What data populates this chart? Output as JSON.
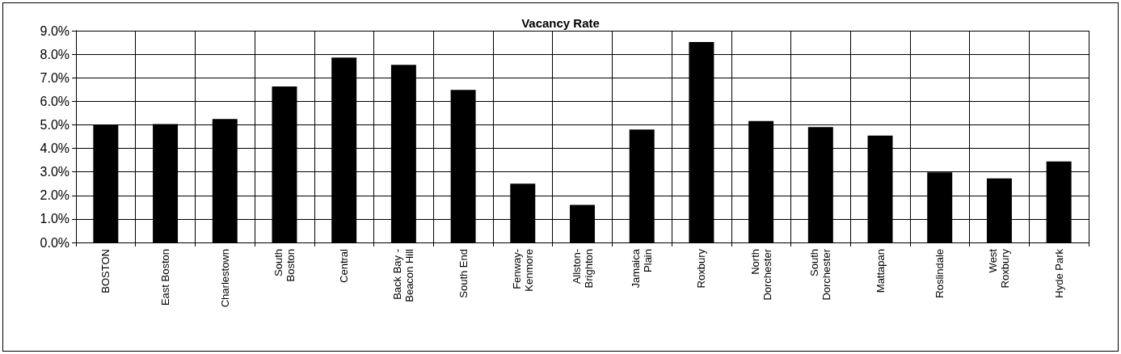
{
  "chart_data": {
    "type": "bar",
    "title": "Vacancy Rate",
    "categories": [
      "BOSTON",
      "East Boston",
      "Charlestown",
      "South\nBoston",
      "Central",
      "Back Bay -\nBeacon Hill",
      "South End",
      "Fenway-\nKenmore",
      "Allston-\nBrighton",
      "Jamaica\nPlain",
      "Roxbury",
      "North\nDorchester",
      "South\nDorchester",
      "Mattapan",
      "Roslindale",
      "West\nRoxbury",
      "Hyde Park"
    ],
    "values": [
      5.0,
      5.03,
      5.25,
      6.63,
      7.86,
      7.55,
      6.48,
      2.5,
      1.6,
      4.8,
      8.52,
      5.16,
      4.9,
      4.54,
      2.98,
      2.72,
      3.44
    ],
    "color": "#000000",
    "ylim": [
      0,
      9
    ],
    "yticks": [
      {
        "value": 0,
        "label": "0.0%"
      },
      {
        "value": 1,
        "label": "1.0%"
      },
      {
        "value": 2,
        "label": "2.0%"
      },
      {
        "value": 3,
        "label": "3.0%"
      },
      {
        "value": 4,
        "label": "4.0%"
      },
      {
        "value": 5,
        "label": "5.0%"
      },
      {
        "value": 6,
        "label": "6.0%"
      },
      {
        "value": 7,
        "label": "7.0%"
      },
      {
        "value": 8,
        "label": "8.0%"
      },
      {
        "value": 9,
        "label": "9.0%"
      }
    ],
    "grid": true
  }
}
